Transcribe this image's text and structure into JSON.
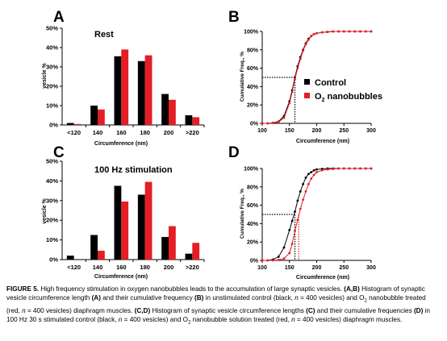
{
  "colors": {
    "control": "#000000",
    "nano": "#e31e24"
  },
  "chart_data": [
    {
      "panel": "A",
      "type": "bar",
      "annotation": "Rest",
      "xlabel": "Circumference (nm)",
      "ylabel": "vesicle %",
      "categories": [
        "<120",
        "140",
        "160",
        "180",
        "200",
        ">220"
      ],
      "yticks": [
        "0%",
        "10%",
        "20%",
        "30%",
        "40%",
        "50%"
      ],
      "ylim": [
        0,
        50
      ],
      "series": [
        {
          "color": "#000000",
          "values": [
            1,
            10,
            35.5,
            33,
            16,
            5
          ]
        },
        {
          "color": "#e31e24",
          "values": [
            0.5,
            8,
            39,
            36,
            13,
            4
          ]
        }
      ]
    },
    {
      "panel": "B",
      "type": "line",
      "xlabel": "Circumference (nm)",
      "ylabel": "Cumulative Freq., %",
      "xticks": [
        "100",
        "150",
        "200",
        "250",
        "300"
      ],
      "yticks": [
        "0%",
        "20%",
        "40%",
        "60%",
        "80%",
        "100%"
      ],
      "xlim": [
        100,
        300
      ],
      "ylim": [
        0,
        100
      ],
      "legend": {
        "placement": "right",
        "labels": [
          "Control",
          "O",
          "2",
          " nanobubbles"
        ]
      },
      "reference": {
        "x": 160,
        "y": 50
      },
      "series": [
        {
          "color": "#000000",
          "x": [
            100,
            110,
            120,
            130,
            140,
            150,
            155,
            160,
            165,
            170,
            175,
            180,
            185,
            190,
            195,
            200,
            210,
            220,
            230,
            240,
            250,
            260,
            270,
            280,
            290,
            300
          ],
          "y": [
            0,
            0,
            0.5,
            2,
            8,
            24,
            36,
            50,
            62,
            72,
            80,
            87,
            92,
            95,
            97,
            98,
            99,
            99.5,
            100,
            100,
            100,
            100,
            100,
            100,
            100,
            100
          ]
        },
        {
          "color": "#e31e24",
          "x": [
            100,
            110,
            120,
            130,
            140,
            150,
            155,
            160,
            165,
            170,
            175,
            180,
            185,
            190,
            195,
            200,
            210,
            220,
            230,
            240,
            250,
            260,
            270,
            280,
            290,
            300
          ],
          "y": [
            0,
            0,
            0.3,
            1.5,
            6,
            22,
            34,
            48,
            60,
            70,
            79,
            86,
            91,
            95,
            97,
            98,
            99,
            99.5,
            100,
            100,
            100,
            100,
            100,
            100,
            100,
            100
          ]
        }
      ]
    },
    {
      "panel": "C",
      "type": "bar",
      "annotation": "100 Hz stimulation",
      "xlabel": "Circumference (nm)",
      "ylabel": "vesicle %",
      "categories": [
        "<120",
        "140",
        "160",
        "180",
        "200",
        ">220"
      ],
      "yticks": [
        "0%",
        "10%",
        "20%",
        "30%",
        "40%",
        "50%"
      ],
      "ylim": [
        0,
        50
      ],
      "series": [
        {
          "color": "#000000",
          "values": [
            2,
            12.5,
            37.5,
            33,
            11.5,
            3
          ]
        },
        {
          "color": "#e31e24",
          "values": [
            0,
            4.5,
            29.5,
            39.5,
            17,
            8.5
          ]
        }
      ]
    },
    {
      "panel": "D",
      "type": "line",
      "xlabel": "Circumference (nm)",
      "ylabel": "Cumulative Freq., %",
      "xticks": [
        "100",
        "150",
        "200",
        "250",
        "300"
      ],
      "yticks": [
        "0%",
        "20%",
        "40%",
        "60%",
        "80%",
        "100%"
      ],
      "xlim": [
        100,
        300
      ],
      "ylim": [
        0,
        100
      ],
      "reference": {
        "x": 160,
        "y": 50,
        "x2": 167
      },
      "series": [
        {
          "color": "#000000",
          "x": [
            100,
            110,
            120,
            130,
            140,
            150,
            155,
            160,
            165,
            170,
            175,
            180,
            185,
            190,
            195,
            200,
            210,
            220,
            230,
            240,
            250,
            260,
            270,
            280,
            290,
            300
          ],
          "y": [
            0,
            0,
            1,
            4,
            14,
            33,
            43,
            53,
            65,
            75,
            83,
            90,
            94,
            96,
            98,
            99,
            99.5,
            100,
            100,
            100,
            100,
            100,
            100,
            100,
            100,
            100
          ]
        },
        {
          "color": "#e31e24",
          "x": [
            100,
            110,
            120,
            130,
            140,
            150,
            155,
            160,
            165,
            170,
            175,
            180,
            185,
            190,
            195,
            200,
            210,
            220,
            230,
            240,
            250,
            260,
            270,
            280,
            290,
            300
          ],
          "y": [
            0,
            0,
            0,
            0.5,
            2,
            8,
            18,
            32,
            44,
            56,
            66,
            75,
            83,
            89,
            93,
            96,
            98,
            99,
            99.5,
            100,
            100,
            100,
            100,
            100,
            100,
            100
          ]
        }
      ]
    }
  ],
  "caption": {
    "title_bold": "FIGURE 5.",
    "t1": " High frequency stimulation in oxygen nanobubbles leads to the accumulation of large synaptic vesicles. ",
    "ab": "(A,B)",
    "t2": " Histogram of synaptic vesicle circumference length ",
    "a": "(A)",
    "t3": " and their cumulative frequency ",
    "b": "(B)",
    "t4": " in unstimulated control (black, ",
    "n1": "n",
    "t5": " = 400 vesicles) and O",
    "sub1": "2",
    "t6": " nanobubble treated (red, ",
    "n2": "n",
    "t7": " = 400 vesicles) diaphragm muscles. ",
    "cd": "(C,D)",
    "t8": " Histogram of synaptic vesicle circumference lengths ",
    "c": "(C)",
    "t9": " and their cumulative frequencies ",
    "d": "(D)",
    "t10": " in 100 Hz 30 s stimulated control (black, ",
    "n3": "n",
    "t11": " = 400 vesicles) and O",
    "sub2": "2",
    "t12": " nanobubble solution treated (red, ",
    "n4": "n",
    "t13": " = 400 vesicles) diaphragm muscles."
  }
}
